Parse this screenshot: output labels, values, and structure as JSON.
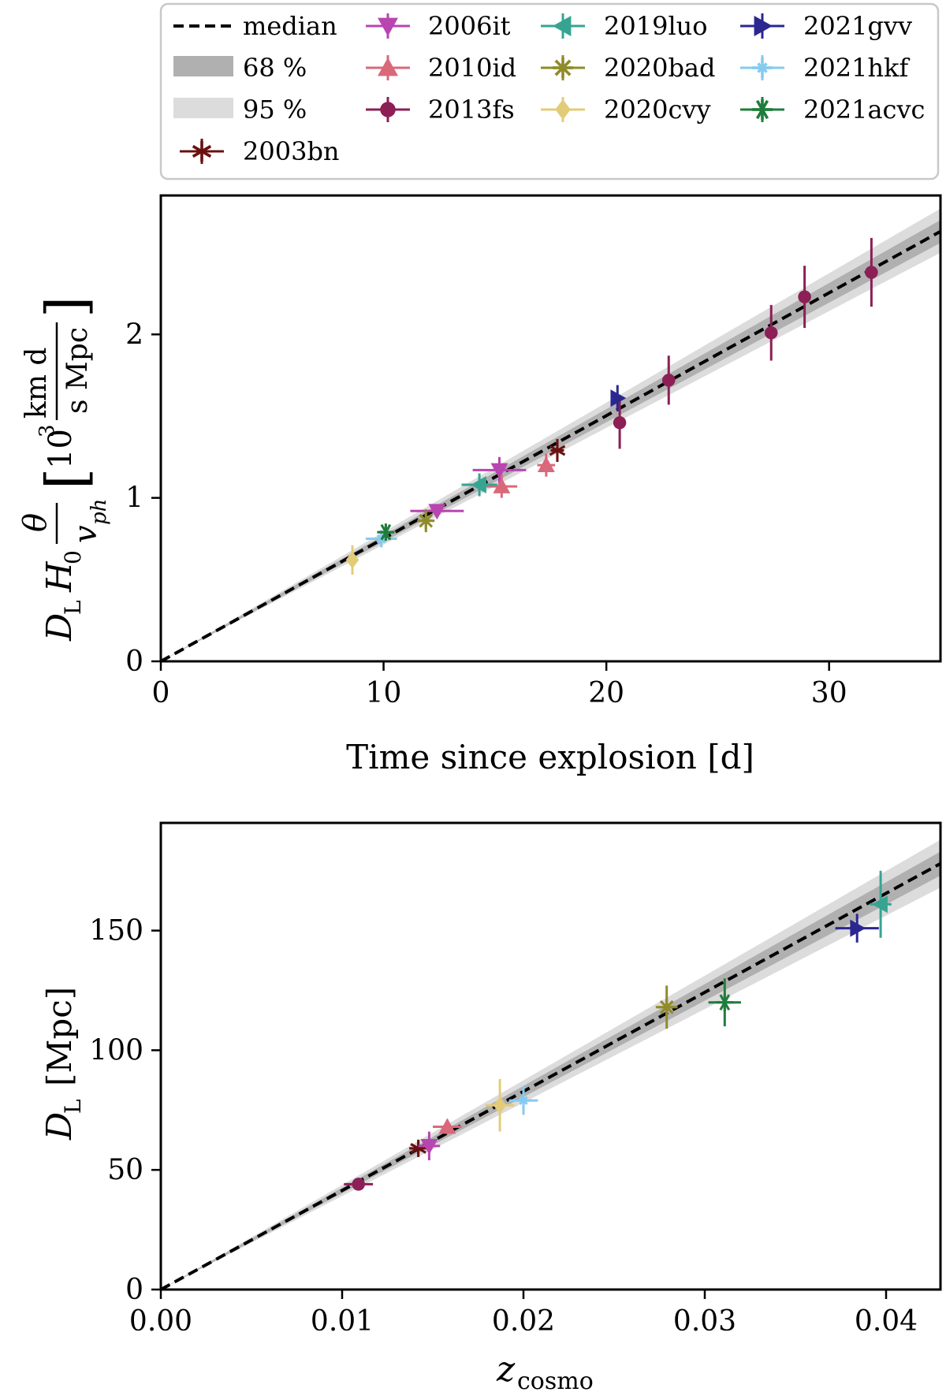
{
  "colors": {
    "median": "#000000",
    "band68": "#b0b0b0",
    "band95": "#dcdcdc",
    "2003bn": "#6b1010",
    "2006it": "#b845b0",
    "2010id": "#d9697a",
    "2013fs": "#8c1f55",
    "2019luo": "#35a592",
    "2020bad": "#8f8b2a",
    "2020cvy": "#e3cc78",
    "2021gvv": "#2a2790",
    "2021hkf": "#86cbef",
    "2021acvc": "#1f7d3c"
  },
  "legend": {
    "median": "median",
    "band68": "68 %",
    "band95": "95 %",
    "supernovae": [
      "2003bn",
      "2006it",
      "2010id",
      "2013fs",
      "2019luo",
      "2020bad",
      "2020cvy",
      "2021gvv",
      "2021hkf",
      "2021acvc"
    ],
    "markers": {
      "2003bn": "asterisk",
      "2006it": "triangle-down",
      "2010id": "triangle-up",
      "2013fs": "circle",
      "2019luo": "triangle-left",
      "2020bad": "star8",
      "2020cvy": "diamond",
      "2021gvv": "triangle-right",
      "2021hkf": "plus-star",
      "2021acvc": "asterisk-plus"
    }
  },
  "chart_data": [
    {
      "type": "scatter",
      "title": "",
      "xlabel": "Time since explosion [d]",
      "ylabel_main": "D",
      "ylabel_sub": "L",
      "ylabel_parts": [
        "H",
        "0",
        "θ",
        "v",
        "ph",
        "10",
        "3",
        "km d",
        "s Mpc"
      ],
      "xlim": [
        0,
        35
      ],
      "ylim": [
        0,
        2.85
      ],
      "xticks": [
        0,
        10,
        20,
        30
      ],
      "yticks": [
        0,
        1,
        2
      ],
      "median_line": {
        "x": [
          0,
          35
        ],
        "y": [
          0,
          2.63
        ]
      },
      "band68": {
        "x": [
          0,
          35
        ],
        "lower": [
          0,
          2.56
        ],
        "upper": [
          0,
          2.7
        ]
      },
      "band95": {
        "x": [
          0,
          35
        ],
        "lower": [
          0,
          2.5
        ],
        "upper": [
          0,
          2.77
        ]
      },
      "series": [
        {
          "name": "2003bn",
          "points": [
            {
              "x": 17.8,
              "y": 1.29,
              "xerr": 0.3,
              "yerr": 0.07
            }
          ]
        },
        {
          "name": "2006it",
          "points": [
            {
              "x": 12.4,
              "y": 0.92,
              "xerr": 1.2,
              "yerr": 0.04
            },
            {
              "x": 15.2,
              "y": 1.17,
              "xerr": 1.2,
              "yerr": 0.08
            }
          ]
        },
        {
          "name": "2010id",
          "points": [
            {
              "x": 15.3,
              "y": 1.07,
              "xerr": 0.7,
              "yerr": 0.07
            },
            {
              "x": 17.3,
              "y": 1.2,
              "xerr": 0.4,
              "yerr": 0.07
            }
          ]
        },
        {
          "name": "2013fs",
          "points": [
            {
              "x": 20.6,
              "y": 1.46,
              "xerr": 0,
              "yerr": 0.16
            },
            {
              "x": 22.8,
              "y": 1.72,
              "xerr": 0,
              "yerr": 0.15
            },
            {
              "x": 27.4,
              "y": 2.01,
              "xerr": 0,
              "yerr": 0.17
            },
            {
              "x": 28.9,
              "y": 2.23,
              "xerr": 0,
              "yerr": 0.19
            },
            {
              "x": 31.9,
              "y": 2.38,
              "xerr": 0,
              "yerr": 0.21
            }
          ]
        },
        {
          "name": "2019luo",
          "points": [
            {
              "x": 14.3,
              "y": 1.08,
              "xerr": 0.8,
              "yerr": 0.07
            }
          ]
        },
        {
          "name": "2020bad",
          "points": [
            {
              "x": 11.9,
              "y": 0.86,
              "xerr": 0.2,
              "yerr": 0.07
            }
          ]
        },
        {
          "name": "2020cvy",
          "points": [
            {
              "x": 8.6,
              "y": 0.62,
              "xerr": 0,
              "yerr": 0.09
            }
          ]
        },
        {
          "name": "2021gvv",
          "points": [
            {
              "x": 20.5,
              "y": 1.61,
              "xerr": 0.3,
              "yerr": 0.08
            }
          ]
        },
        {
          "name": "2021hkf",
          "points": [
            {
              "x": 9.9,
              "y": 0.75,
              "xerr": 0.7,
              "yerr": 0.03
            }
          ]
        },
        {
          "name": "2021acvc",
          "points": [
            {
              "x": 10.1,
              "y": 0.79,
              "xerr": 0.3,
              "yerr": 0.03
            }
          ]
        }
      ]
    },
    {
      "type": "scatter",
      "title": "",
      "xlabel_main": "z",
      "xlabel_sub": "cosmo",
      "ylabel_main": "D",
      "ylabel_sub": "L",
      "ylabel_unit": "[Mpc]",
      "xlim": [
        0,
        0.043
      ],
      "ylim": [
        0,
        195
      ],
      "xticks": [
        "0.00",
        "0.01",
        "0.02",
        "0.03",
        "0.04"
      ],
      "yticks": [
        0,
        50,
        100,
        150
      ],
      "median_line": {
        "x": [
          0,
          0.043
        ],
        "y": [
          0,
          178
        ]
      },
      "band68": {
        "x": [
          0,
          0.043
        ],
        "lower": [
          0,
          173
        ],
        "upper": [
          0,
          183
        ]
      },
      "band95": {
        "x": [
          0,
          0.043
        ],
        "lower": [
          0,
          168
        ],
        "upper": [
          0,
          188
        ]
      },
      "series": [
        {
          "name": "2003bn",
          "points": [
            {
              "x": 0.0142,
              "y": 59,
              "xerr": 0.0005,
              "yerr": 2
            }
          ]
        },
        {
          "name": "2006it",
          "points": [
            {
              "x": 0.0148,
              "y": 60,
              "xerr": 0.0006,
              "yerr": 6
            }
          ]
        },
        {
          "name": "2010id",
          "points": [
            {
              "x": 0.0158,
              "y": 68,
              "xerr": 0.0008,
              "yerr": 3
            }
          ]
        },
        {
          "name": "2013fs",
          "points": [
            {
              "x": 0.0109,
              "y": 44,
              "xerr": 0.0008,
              "yerr": 2
            }
          ]
        },
        {
          "name": "2019luo",
          "points": [
            {
              "x": 0.0397,
              "y": 161,
              "xerr": 0.0006,
              "yerr": 14
            }
          ]
        },
        {
          "name": "2020bad",
          "points": [
            {
              "x": 0.0279,
              "y": 118,
              "xerr": 0.0006,
              "yerr": 9
            }
          ]
        },
        {
          "name": "2020cvy",
          "points": [
            {
              "x": 0.0187,
              "y": 77,
              "xerr": 0.0008,
              "yerr": 11
            }
          ]
        },
        {
          "name": "2021gvv",
          "points": [
            {
              "x": 0.0384,
              "y": 151,
              "xerr": 0.0012,
              "yerr": 6
            }
          ]
        },
        {
          "name": "2021hkf",
          "points": [
            {
              "x": 0.02,
              "y": 79,
              "xerr": 0.0008,
              "yerr": 6
            }
          ]
        },
        {
          "name": "2021acvc",
          "points": [
            {
              "x": 0.0311,
              "y": 120,
              "xerr": 0.0009,
              "yerr": 10
            }
          ]
        }
      ]
    }
  ]
}
